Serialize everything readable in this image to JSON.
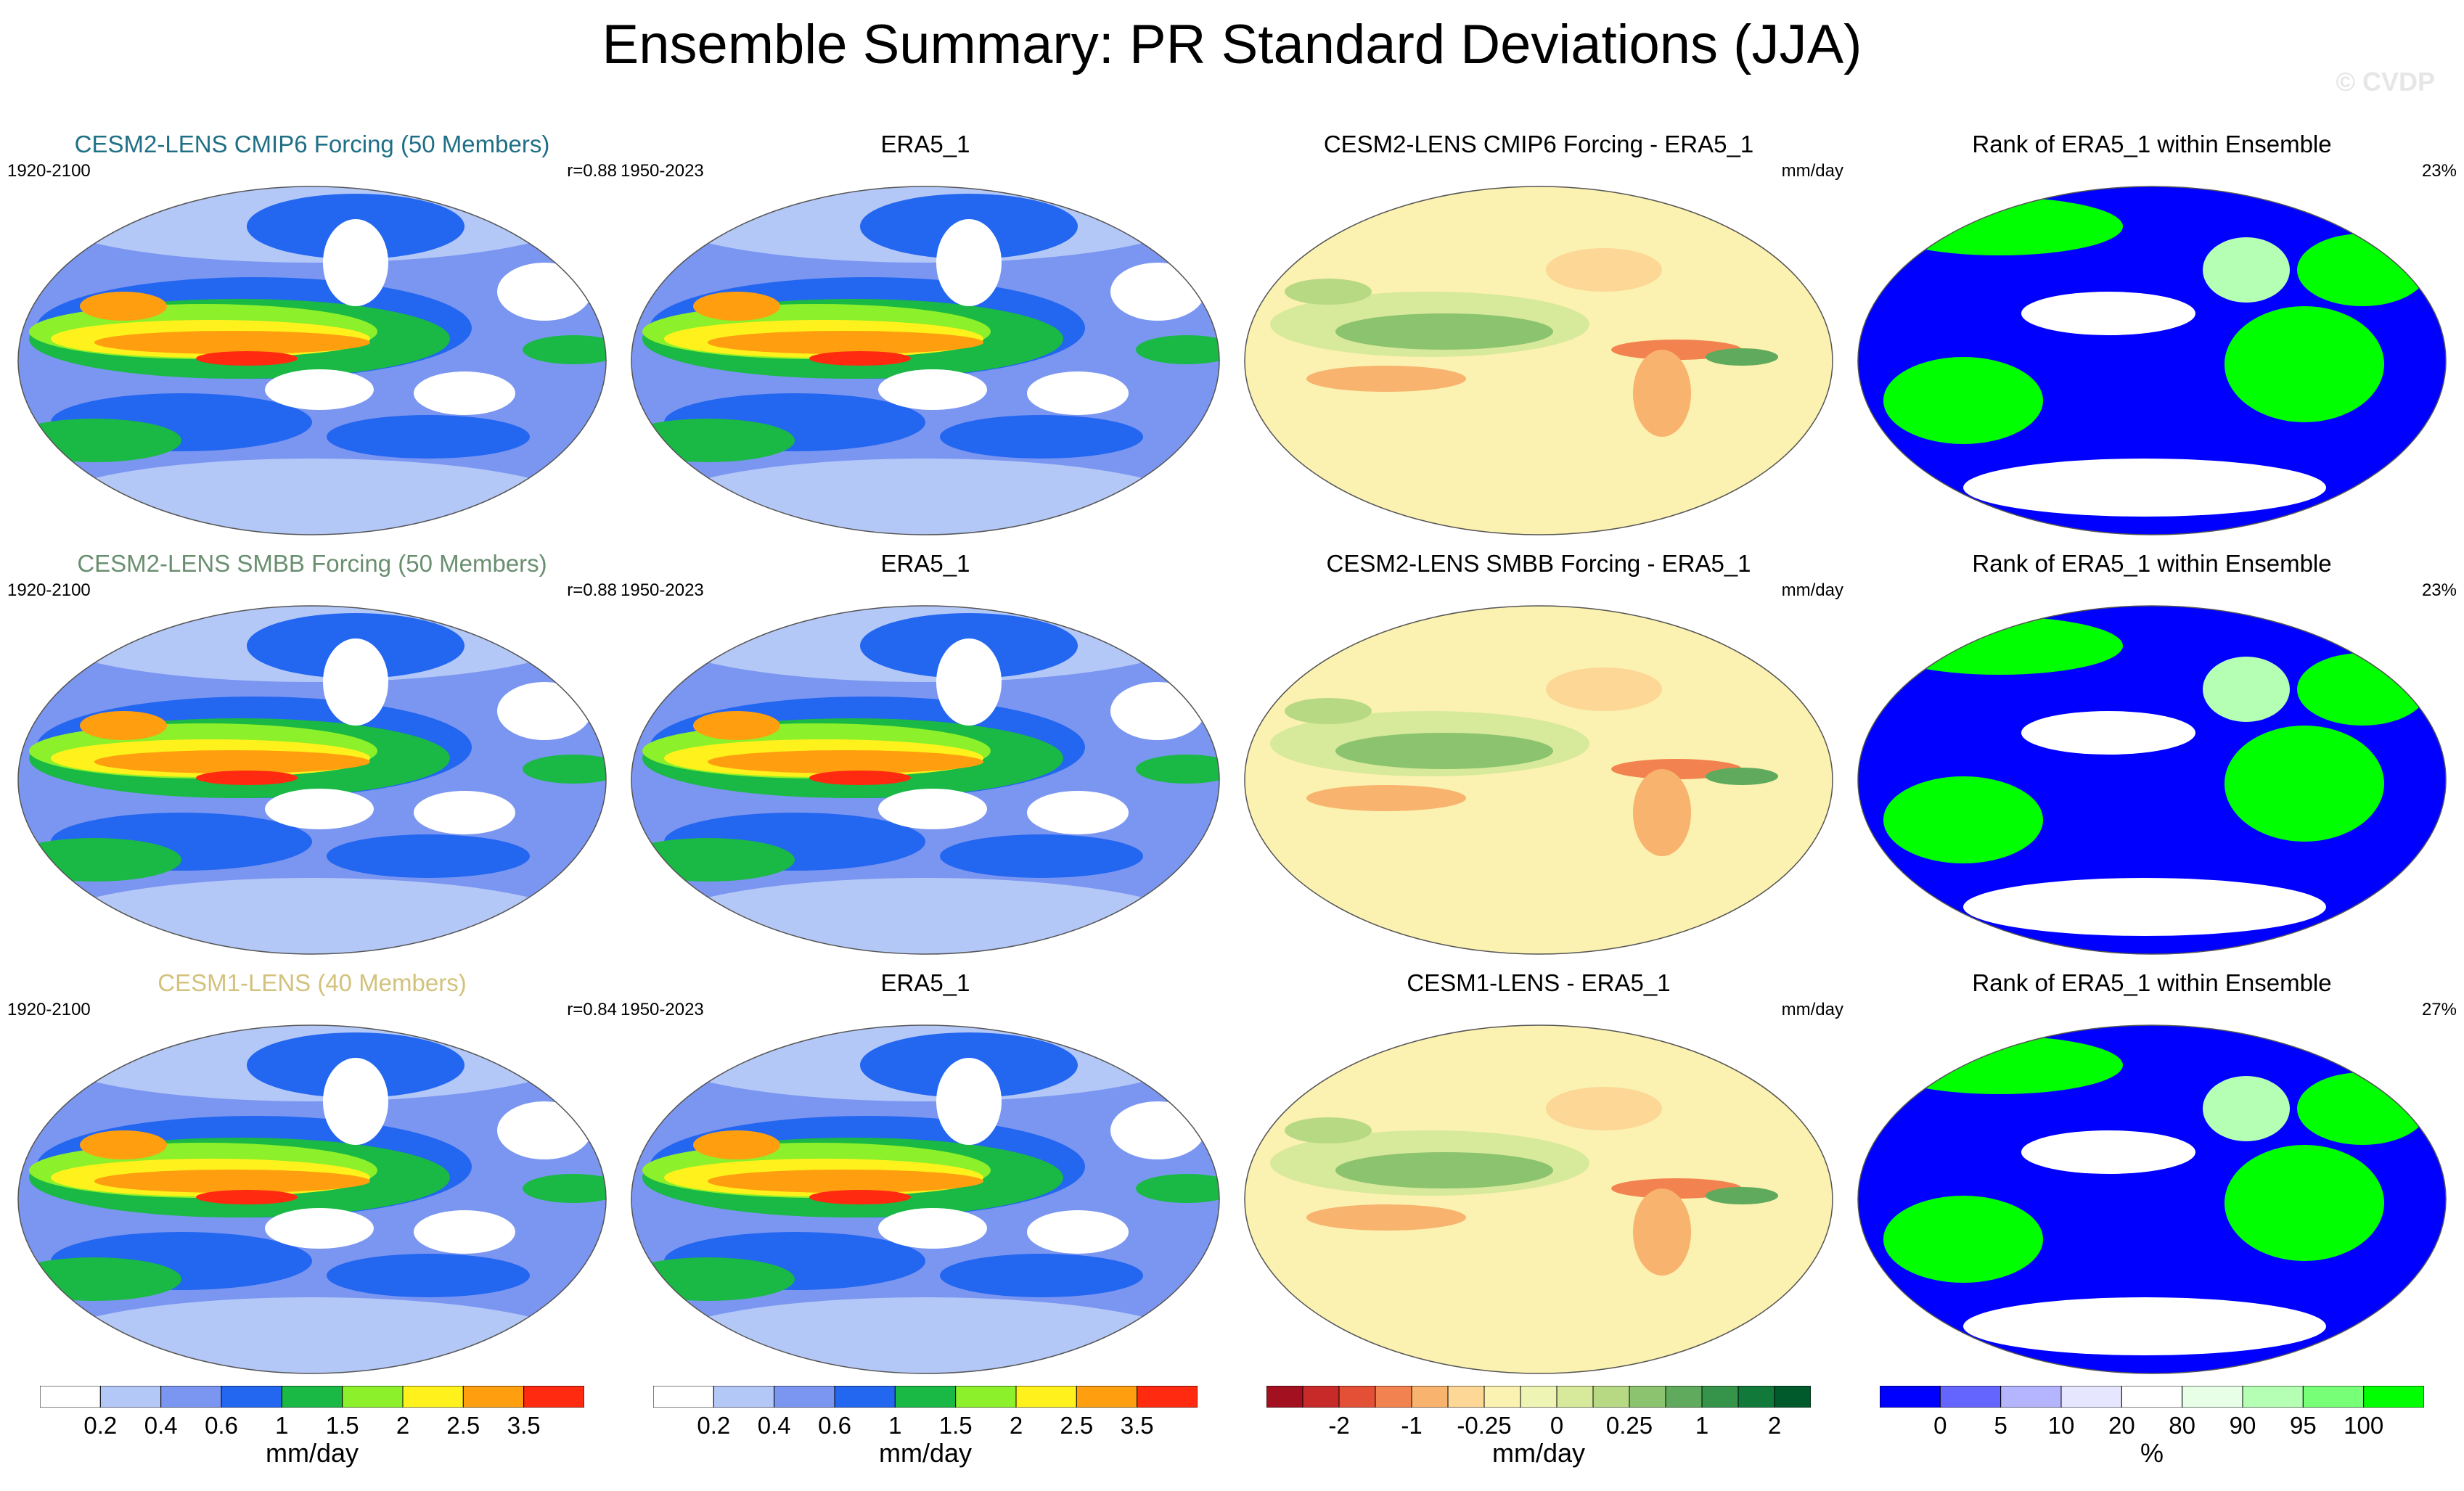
{
  "title": "Ensemble Summary: PR Standard Deviations (JJA)",
  "watermark": "© CVDP",
  "rows": [
    {
      "model": {
        "title": "CESM2-LENS CMIP6 Forcing (50 Members)",
        "title_color": "#1f6f86",
        "years": "1920-2100",
        "r": "r=0.88"
      },
      "obs": {
        "title": "ERA5_1",
        "years": "1950-2023"
      },
      "diff": {
        "title": "CESM2-LENS CMIP6 Forcing - ERA5_1",
        "units": "mm/day"
      },
      "rank": {
        "title": "Rank of ERA5_1 within Ensemble",
        "pct": "23%"
      }
    },
    {
      "model": {
        "title": "CESM2-LENS SMBB Forcing (50 Members)",
        "title_color": "#6a8f70",
        "years": "1920-2100",
        "r": "r=0.88"
      },
      "obs": {
        "title": "ERA5_1",
        "years": "1950-2023"
      },
      "diff": {
        "title": "CESM2-LENS SMBB Forcing - ERA5_1",
        "units": "mm/day"
      },
      "rank": {
        "title": "Rank of ERA5_1 within Ensemble",
        "pct": "23%"
      }
    },
    {
      "model": {
        "title": "CESM1-LENS (40 Members)",
        "title_color": "#d2c27c",
        "years": "1920-2100",
        "r": "r=0.84"
      },
      "obs": {
        "title": "ERA5_1",
        "years": "1950-2023"
      },
      "diff": {
        "title": "CESM1-LENS - ERA5_1",
        "units": "mm/day"
      },
      "rank": {
        "title": "Rank of ERA5_1 within Ensemble",
        "pct": "27%"
      }
    }
  ],
  "colorbars": {
    "sd": {
      "colors": [
        "#ffffff",
        "#b4c8f8",
        "#7b96f0",
        "#2366f0",
        "#1ab845",
        "#8cf02a",
        "#fff21c",
        "#ff9f10",
        "#ff2a0f"
      ],
      "ticks": [
        "0.2",
        "0.4",
        "0.6",
        "1",
        "1.5",
        "2",
        "2.5",
        "3.5"
      ],
      "units": "mm/day"
    },
    "diff": {
      "colors": [
        "#a3101f",
        "#c82a2a",
        "#e45036",
        "#f2824f",
        "#f8b36e",
        "#fcd796",
        "#fbf1b0",
        "#eef5b4",
        "#d7e99b",
        "#b7d984",
        "#8cc36e",
        "#5faa5d",
        "#359449",
        "#117a3a",
        "#005a2c"
      ],
      "ticks": [
        "-2",
        "-1",
        "-0.25",
        "0",
        "0.25",
        "1",
        "2"
      ],
      "units": "mm/day"
    },
    "rank": {
      "colors": [
        "#0000ff",
        "#6464ff",
        "#b4b4ff",
        "#e6e6ff",
        "#ffffff",
        "#e6ffe6",
        "#b4ffb4",
        "#78ff78",
        "#00ff00"
      ],
      "ticks": [
        "0",
        "5",
        "10",
        "20",
        "80",
        "90",
        "95",
        "100"
      ],
      "units": "%"
    }
  },
  "map_fills": {
    "sd_ocean": "#7b96f0",
    "diff_base": "#fbf1b0",
    "rank_base": "#0000ff"
  }
}
